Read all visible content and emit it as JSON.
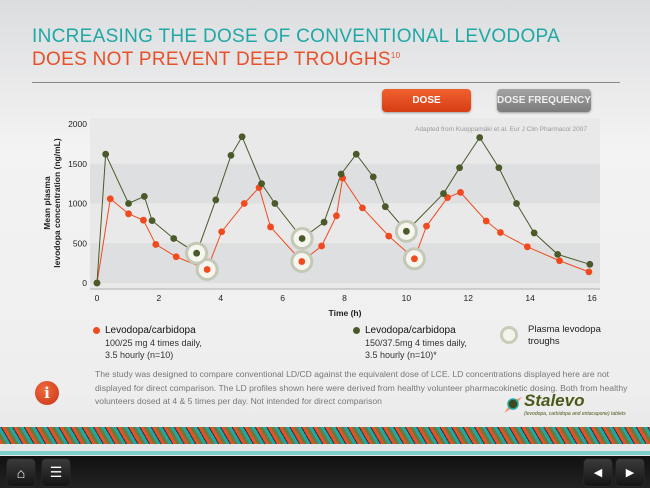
{
  "header": {
    "title_line1": "INCREASING THE DOSE OF CONVENTIONAL LEVODOPA",
    "title_line2": "DOES NOT PREVENT DEEP TROUGHS",
    "title_ref": "10"
  },
  "buttons": {
    "dose": "DOSE",
    "dose_frequency": "DOSE FREQUENCY"
  },
  "chart_data": {
    "type": "line",
    "source": "Adapted from Kuoppamäki et al. Eur J Clin Pharmacol 2007",
    "xlabel": "Time (h)",
    "ylabel_line1": "Mean plasma",
    "ylabel_line2": "levodopa concentration (ng/mL)",
    "xlim": [
      0,
      16
    ],
    "ylim": [
      0,
      2000
    ],
    "xticks": [
      "0",
      "2",
      "4",
      "6",
      "8",
      "10",
      "12",
      "14",
      "16"
    ],
    "yticks": [
      "0",
      "500",
      "1000",
      "1500",
      "2000"
    ],
    "series": [
      {
        "name": "Levodopa/carbidopa",
        "detail1": "100/25 mg 4 times daily,",
        "detail2": "3.5 hourly (n=10)",
        "color": "#f04a1e",
        "x": [
          0,
          0.43,
          1.02,
          1.5,
          1.9,
          2.56,
          3.56,
          4.03,
          4.76,
          5.24,
          5.61,
          6.62,
          7.26,
          7.74,
          7.94,
          8.58,
          9.43,
          10.26,
          10.65,
          11.33,
          11.75,
          12.58,
          13.04,
          13.91,
          14.95,
          15.9
        ],
        "y": [
          0,
          1060,
          870,
          790,
          485,
          330,
          170,
          645,
          1000,
          1200,
          705,
          270,
          465,
          845,
          1320,
          945,
          590,
          305,
          715,
          1075,
          1140,
          780,
          635,
          455,
          280,
          140
        ],
        "troughs": [
          6,
          11,
          17
        ]
      },
      {
        "name": "Levodopa/carbidopa",
        "detail1": "150/37.5mg 4 times daily,",
        "detail2": "3.5 hourly (n=10)*",
        "color": "#4a5a2a",
        "x": [
          0,
          0.28,
          1.02,
          1.53,
          1.78,
          2.48,
          3.22,
          3.84,
          4.33,
          4.69,
          5.32,
          5.75,
          6.63,
          7.34,
          7.89,
          8.38,
          8.93,
          9.32,
          10.0,
          11.2,
          11.72,
          12.37,
          12.99,
          13.56,
          14.13,
          14.89,
          15.93
        ],
        "y": [
          0,
          1620,
          1000,
          1090,
          785,
          560,
          375,
          1045,
          1605,
          1840,
          1250,
          1000,
          560,
          765,
          1370,
          1620,
          1335,
          960,
          650,
          1125,
          1450,
          1830,
          1450,
          1000,
          630,
          360,
          235
        ],
        "troughs": [
          6,
          12,
          18
        ]
      }
    ],
    "trough_legend": "Plasma levodopa troughs"
  },
  "note": "The study was designed to compare conventional LD/CD against the equivalent dose of LCE. LD concentrations displayed here are not displayed for direct comparison. The LD profiles shown here were derived from healthy volunteer pharmacokinetic dosing. Both from healthy volunteers dosed at 4 & 5 times per day. Not intended for direct comparison",
  "logo": {
    "name": "Stalevo",
    "tagline": "(levodopa, carbidopa and entacapone) tablets"
  },
  "nav": {
    "home": "⌂",
    "menu": "☰",
    "prev": "◀",
    "next": "▶"
  }
}
